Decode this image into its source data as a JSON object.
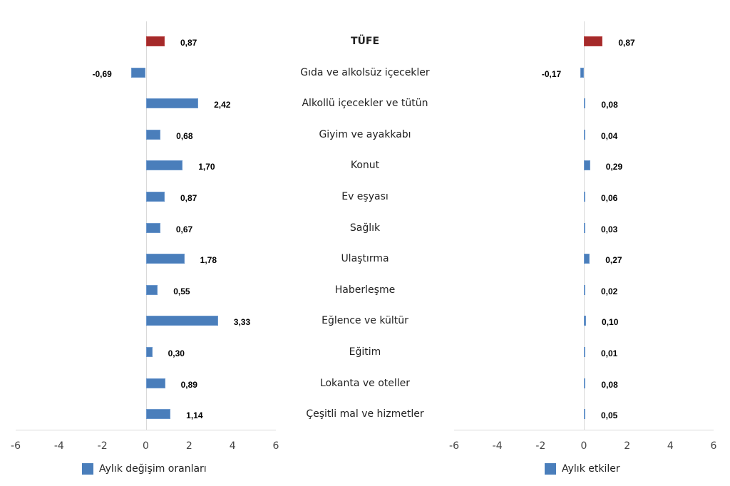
{
  "chart_data": [
    {
      "type": "bar",
      "orientation": "horizontal",
      "title": "",
      "categories": [
        "TÜFE",
        "Gıda ve alkolsüz içecekler",
        "Alkollü içecekler ve tütün",
        "Giyim ve ayakkabı",
        "Konut",
        "Ev eşyası",
        "Sağlık",
        "Ulaştırma",
        "Haberleşme",
        "Eğlence ve kültür",
        "Eğitim",
        "Lokanta ve oteller",
        "Çeşitli mal ve hizmetler"
      ],
      "series": [
        {
          "name": "Aylık değişim oranları",
          "values": [
            0.87,
            -0.69,
            2.42,
            0.68,
            1.7,
            0.87,
            0.67,
            1.78,
            0.55,
            3.33,
            0.3,
            0.89,
            1.14
          ]
        }
      ],
      "value_labels": [
        "0,87",
        "-0,69",
        "2,42",
        "0,68",
        "1,70",
        "0,87",
        "0,67",
        "1,78",
        "0,55",
        "3,33",
        "0,30",
        "0,89",
        "1,14"
      ],
      "highlight_index": 0,
      "xlabel": "",
      "ylabel": "",
      "xlim": [
        -6,
        6
      ],
      "xticks": [
        "-6",
        "-4",
        "-2",
        "0",
        "2",
        "4",
        "6"
      ],
      "legend_position": "bottom",
      "grid": false
    },
    {
      "type": "bar",
      "orientation": "horizontal",
      "title": "",
      "categories": [
        "TÜFE",
        "Gıda ve alkolsüz içecekler",
        "Alkollü içecekler ve tütün",
        "Giyim ve ayakkabı",
        "Konut",
        "Ev eşyası",
        "Sağlık",
        "Ulaştırma",
        "Haberleşme",
        "Eğlence ve kültür",
        "Eğitim",
        "Lokanta ve oteller",
        "Çeşitli mal ve hizmetler"
      ],
      "series": [
        {
          "name": "Aylık etkiler",
          "values": [
            0.87,
            -0.17,
            0.08,
            0.04,
            0.29,
            0.06,
            0.03,
            0.27,
            0.02,
            0.1,
            0.01,
            0.08,
            0.05
          ]
        }
      ],
      "value_labels": [
        "0,87",
        "-0,17",
        "0,08",
        "0,04",
        "0,29",
        "0,06",
        "0,03",
        "0,27",
        "0,02",
        "0,10",
        "0,01",
        "0,08",
        "0,05"
      ],
      "highlight_index": 0,
      "xlabel": "",
      "ylabel": "",
      "xlim": [
        -6,
        6
      ],
      "xticks": [
        "-6",
        "-4",
        "-2",
        "0",
        "2",
        "4",
        "6"
      ],
      "legend_position": "bottom",
      "grid": false
    }
  ],
  "colors": {
    "bar": "#4a7ebb",
    "highlight": "#a52a2a"
  }
}
